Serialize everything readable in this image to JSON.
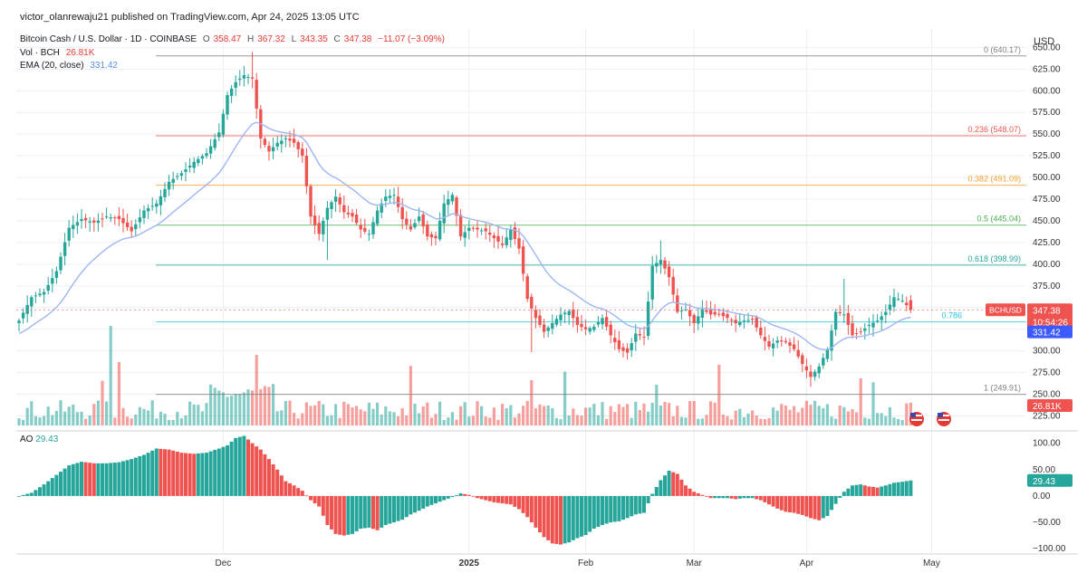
{
  "publisher": "victor_olanrewaju21 published on TradingView.com, Apr 24, 2025 13:05 UTC",
  "legend": {
    "symbol": "Bitcoin Cash / U.S. Dollar · 1D · COINBASE",
    "open_label": "O",
    "open": "358.47",
    "high_label": "H",
    "high": "367.32",
    "low_label": "L",
    "low": "343.35",
    "close_label": "C",
    "close": "347.38",
    "change": "−11.07 (−3.09%)",
    "vol_label": "Vol · BCH",
    "vol": "26.81K",
    "ema_label": "EMA (20, close)",
    "ema": "331.42"
  },
  "ao_legend": {
    "label": "AO",
    "value": "29.43"
  },
  "colors": {
    "up": "#26a69a",
    "down": "#ef5350",
    "ema": "#9fb6f2",
    "grid": "#eceff2"
  },
  "chart_data": [
    {
      "type": "candlestick",
      "title": "Bitcoin Cash / U.S. Dollar · 1D · COINBASE",
      "ylabel": "USD",
      "ylim": [
        212,
        665
      ],
      "ytick_labels": [
        "650.00",
        "625.00",
        "600.00",
        "575.00",
        "550.00",
        "525.00",
        "500.00",
        "475.00",
        "450.00",
        "425.00",
        "400.00",
        "375.00",
        "350.00",
        "325.00",
        "300.00",
        "275.00",
        "250.00",
        "225.00"
      ],
      "xtick_labels": [
        "Dec",
        "2025",
        "Feb",
        "Mar",
        "Apr",
        "May"
      ],
      "close_anchors": [
        [
          0,
          335
        ],
        [
          3,
          362
        ],
        [
          6,
          368
        ],
        [
          9,
          392
        ],
        [
          12,
          442
        ],
        [
          15,
          452
        ],
        [
          18,
          448
        ],
        [
          21,
          455
        ],
        [
          24,
          452
        ],
        [
          27,
          438
        ],
        [
          30,
          462
        ],
        [
          33,
          470
        ],
        [
          36,
          495
        ],
        [
          39,
          505
        ],
        [
          42,
          518
        ],
        [
          45,
          528
        ],
        [
          48,
          552
        ],
        [
          50,
          595
        ],
        [
          52,
          610
        ],
        [
          54,
          618
        ],
        [
          56,
          614
        ],
        [
          58,
          545
        ],
        [
          60,
          530
        ],
        [
          62,
          540
        ],
        [
          64,
          545
        ],
        [
          66,
          540
        ],
        [
          68,
          525
        ],
        [
          70,
          455
        ],
        [
          72,
          435
        ],
        [
          74,
          465
        ],
        [
          76,
          478
        ],
        [
          78,
          460
        ],
        [
          80,
          455
        ],
        [
          82,
          440
        ],
        [
          84,
          435
        ],
        [
          86,
          462
        ],
        [
          88,
          478
        ],
        [
          90,
          480
        ],
        [
          92,
          452
        ],
        [
          94,
          440
        ],
        [
          96,
          455
        ],
        [
          98,
          432
        ],
        [
          100,
          430
        ],
        [
          102,
          470
        ],
        [
          104,
          480
        ],
        [
          106,
          432
        ],
        [
          108,
          442
        ],
        [
          110,
          440
        ],
        [
          112,
          438
        ],
        [
          114,
          430
        ],
        [
          116,
          422
        ],
        [
          118,
          440
        ],
        [
          120,
          418
        ],
        [
          122,
          360
        ],
        [
          124,
          338
        ],
        [
          126,
          322
        ],
        [
          128,
          332
        ],
        [
          130,
          342
        ],
        [
          132,
          346
        ],
        [
          134,
          330
        ],
        [
          136,
          325
        ],
        [
          138,
          328
        ],
        [
          140,
          338
        ],
        [
          142,
          318
        ],
        [
          144,
          302
        ],
        [
          146,
          298
        ],
        [
          148,
          320
        ],
        [
          150,
          316
        ],
        [
          152,
          398
        ],
        [
          154,
          405
        ],
        [
          156,
          385
        ],
        [
          158,
          345
        ],
        [
          160,
          348
        ],
        [
          162,
          332
        ],
        [
          164,
          348
        ],
        [
          166,
          342
        ],
        [
          168,
          342
        ],
        [
          170,
          338
        ],
        [
          172,
          332
        ],
        [
          174,
          335
        ],
        [
          176,
          336
        ],
        [
          178,
          318
        ],
        [
          180,
          305
        ],
        [
          182,
          312
        ],
        [
          184,
          310
        ],
        [
          186,
          302
        ],
        [
          188,
          285
        ],
        [
          190,
          270
        ],
        [
          192,
          282
        ],
        [
          194,
          302
        ],
        [
          196,
          345
        ],
        [
          198,
          342
        ],
        [
          200,
          318
        ],
        [
          202,
          322
        ],
        [
          204,
          330
        ],
        [
          206,
          335
        ],
        [
          208,
          345
        ],
        [
          210,
          362
        ],
        [
          212,
          358
        ],
        [
          214,
          347.38
        ]
      ],
      "horizontal_lines": [
        {
          "label": "0 (640.17)",
          "value": 640.17,
          "color": "#7f7f7f"
        },
        {
          "label": "0.236 (548.07)",
          "value": 548.07,
          "color": "#ef5350"
        },
        {
          "label": "0.382 (491.09)",
          "value": 491.09,
          "color": "#f6a02c"
        },
        {
          "label": "0.5 (445.04)",
          "value": 445.04,
          "color": "#4caf50"
        },
        {
          "label": "0.618 (398.99)",
          "value": 398.99,
          "color": "#26a69a"
        },
        {
          "label": "0.786",
          "value": 333.42,
          "color": "#26c6da"
        },
        {
          "label": "1 (249.91)",
          "value": 249.91,
          "color": "#7f7f7f"
        }
      ],
      "price_tags": [
        {
          "label": "BCHUSD",
          "value": "347.38",
          "countdown": "10:54:26",
          "color": "#ef5350"
        },
        {
          "value": "331.42",
          "color": "#3d5afe"
        },
        {
          "value": "26.81K",
          "color": "#ef5350"
        }
      ],
      "legend": [
        "Vol · BCH",
        "EMA (20, close)"
      ]
    },
    {
      "type": "bar",
      "title": "AO",
      "ylim": [
        -110,
        120
      ],
      "ytick_labels": [
        "100.00",
        "50.00",
        "0.00",
        "−50.00",
        "−100.00"
      ],
      "ao_anchors": [
        [
          0,
          0
        ],
        [
          3,
          6
        ],
        [
          6,
          22
        ],
        [
          9,
          40
        ],
        [
          12,
          58
        ],
        [
          15,
          65
        ],
        [
          18,
          62
        ],
        [
          21,
          62
        ],
        [
          24,
          64
        ],
        [
          27,
          70
        ],
        [
          30,
          78
        ],
        [
          33,
          90
        ],
        [
          36,
          88
        ],
        [
          39,
          82
        ],
        [
          42,
          80
        ],
        [
          45,
          82
        ],
        [
          48,
          90
        ],
        [
          50,
          96
        ],
        [
          52,
          110
        ],
        [
          54,
          114
        ],
        [
          56,
          100
        ],
        [
          58,
          88
        ],
        [
          60,
          70
        ],
        [
          62,
          50
        ],
        [
          64,
          28
        ],
        [
          66,
          20
        ],
        [
          68,
          10
        ],
        [
          70,
          -8
        ],
        [
          72,
          -20
        ],
        [
          74,
          -55
        ],
        [
          76,
          -72
        ],
        [
          78,
          -75
        ],
        [
          80,
          -72
        ],
        [
          82,
          -62
        ],
        [
          84,
          -60
        ],
        [
          86,
          -65
        ],
        [
          88,
          -55
        ],
        [
          90,
          -50
        ],
        [
          92,
          -45
        ],
        [
          94,
          -35
        ],
        [
          96,
          -28
        ],
        [
          98,
          -20
        ],
        [
          100,
          -14
        ],
        [
          102,
          -8
        ],
        [
          104,
          -2
        ],
        [
          106,
          5
        ],
        [
          108,
          2
        ],
        [
          110,
          -4
        ],
        [
          112,
          -8
        ],
        [
          114,
          -12
        ],
        [
          116,
          -14
        ],
        [
          118,
          -16
        ],
        [
          120,
          -25
        ],
        [
          122,
          -40
        ],
        [
          124,
          -60
        ],
        [
          126,
          -78
        ],
        [
          128,
          -90
        ],
        [
          130,
          -92
        ],
        [
          132,
          -88
        ],
        [
          134,
          -80
        ],
        [
          136,
          -74
        ],
        [
          138,
          -62
        ],
        [
          140,
          -55
        ],
        [
          142,
          -50
        ],
        [
          144,
          -48
        ],
        [
          146,
          -42
        ],
        [
          148,
          -35
        ],
        [
          150,
          -32
        ],
        [
          152,
          4
        ],
        [
          154,
          30
        ],
        [
          156,
          48
        ],
        [
          158,
          42
        ],
        [
          160,
          20
        ],
        [
          162,
          8
        ],
        [
          164,
          2
        ],
        [
          166,
          -4
        ],
        [
          168,
          -4
        ],
        [
          170,
          -4
        ],
        [
          172,
          -6
        ],
        [
          174,
          -4
        ],
        [
          176,
          -4
        ],
        [
          178,
          -8
        ],
        [
          180,
          -16
        ],
        [
          182,
          -24
        ],
        [
          184,
          -30
        ],
        [
          186,
          -32
        ],
        [
          188,
          -36
        ],
        [
          190,
          -42
        ],
        [
          192,
          -46
        ],
        [
          194,
          -38
        ],
        [
          196,
          -15
        ],
        [
          198,
          8
        ],
        [
          200,
          20
        ],
        [
          202,
          22
        ],
        [
          204,
          18
        ],
        [
          206,
          16
        ],
        [
          208,
          20
        ],
        [
          210,
          25
        ],
        [
          212,
          27
        ],
        [
          214,
          29.43
        ]
      ],
      "last_value_tag": "29.43"
    }
  ]
}
